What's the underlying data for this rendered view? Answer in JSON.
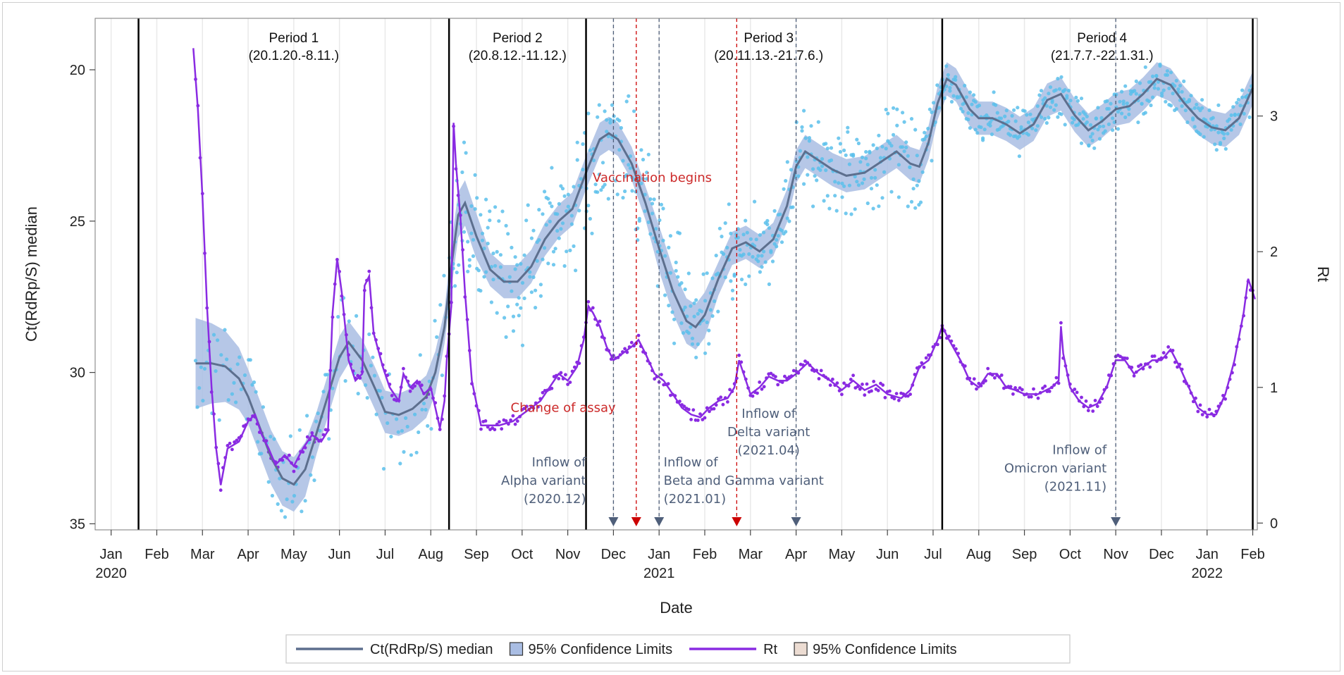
{
  "chart_data": {
    "type": "line",
    "xlabel": "Date",
    "ylabel_left": "Ct(RdRp/S) median",
    "ylabel_right": "Rt",
    "ylim_left": [
      35,
      18
    ],
    "ylim_right": [
      0,
      3.6
    ],
    "yticks_left": [
      20,
      25,
      30,
      35
    ],
    "yticks_right": [
      0,
      1,
      2,
      3
    ],
    "x_ticks": [
      {
        "m": 0,
        "label": "Jan",
        "year": "2020"
      },
      {
        "m": 1,
        "label": "Feb",
        "year": ""
      },
      {
        "m": 2,
        "label": "Mar",
        "year": ""
      },
      {
        "m": 3,
        "label": "Apr",
        "year": ""
      },
      {
        "m": 4,
        "label": "May",
        "year": ""
      },
      {
        "m": 5,
        "label": "Jun",
        "year": ""
      },
      {
        "m": 6,
        "label": "Jul",
        "year": ""
      },
      {
        "m": 7,
        "label": "Aug",
        "year": ""
      },
      {
        "m": 8,
        "label": "Sep",
        "year": ""
      },
      {
        "m": 9,
        "label": "Oct",
        "year": ""
      },
      {
        "m": 10,
        "label": "Nov",
        "year": ""
      },
      {
        "m": 11,
        "label": "Dec",
        "year": ""
      },
      {
        "m": 12,
        "label": "Jan",
        "year": "2021"
      },
      {
        "m": 13,
        "label": "Feb",
        "year": ""
      },
      {
        "m": 14,
        "label": "Mar",
        "year": ""
      },
      {
        "m": 15,
        "label": "Apr",
        "year": ""
      },
      {
        "m": 16,
        "label": "May",
        "year": ""
      },
      {
        "m": 17,
        "label": "Jun",
        "year": ""
      },
      {
        "m": 18,
        "label": "Jul",
        "year": ""
      },
      {
        "m": 19,
        "label": "Aug",
        "year": ""
      },
      {
        "m": 20,
        "label": "Sep",
        "year": ""
      },
      {
        "m": 21,
        "label": "Oct",
        "year": ""
      },
      {
        "m": 22,
        "label": "Nov",
        "year": ""
      },
      {
        "m": 23,
        "label": "Dec",
        "year": ""
      },
      {
        "m": 24,
        "label": "Jan",
        "year": "2022"
      },
      {
        "m": 25,
        "label": "Feb",
        "year": ""
      }
    ],
    "period_boundaries": [
      0.6,
      7.4,
      10.4,
      18.2,
      25.0
    ],
    "periods": [
      {
        "name": "Period 1",
        "range": "(20.1.20.-8.11.)",
        "m": 4.0
      },
      {
        "name": "Period 2",
        "range": "(20.8.12.-11.12.)",
        "m": 8.9
      },
      {
        "name": "Period 3",
        "range": "(20.11.13.-21.7.6.)",
        "m": 14.4
      },
      {
        "name": "Period 4",
        "range": "(21.7.7.-22.1.31.)",
        "m": 21.7
      }
    ],
    "events": [
      {
        "m": 11.0,
        "color": "#4f5f7a",
        "kind": "blue"
      },
      {
        "m": 11.5,
        "color": "#cc0000",
        "kind": "red"
      },
      {
        "m": 12.0,
        "color": "#4f5f7a",
        "kind": "blue"
      },
      {
        "m": 13.7,
        "color": "#cc0000",
        "kind": "red"
      },
      {
        "m": 15.0,
        "color": "#4f5f7a",
        "kind": "blue"
      },
      {
        "m": 22.0,
        "color": "#4f5f7a",
        "kind": "blue"
      }
    ],
    "annotations": [
      {
        "lines": [
          "Vaccination begins"
        ],
        "m": 11.85,
        "ct": 23.7,
        "color": "red",
        "anchor": "middle"
      },
      {
        "lines": [
          "Change of assay"
        ],
        "m": 9.9,
        "ct": 31.3,
        "color": "red",
        "anchor": "middle"
      },
      {
        "lines": [
          "Inflow of",
          "Alpha variant",
          "(2020.12)"
        ],
        "m": 10.4,
        "ct": 33.1,
        "color": "blue",
        "anchor": "end"
      },
      {
        "lines": [
          "Inflow of",
          "Beta and Gamma variant",
          "(2021.01)"
        ],
        "m": 12.1,
        "ct": 33.1,
        "color": "blue",
        "anchor": "start"
      },
      {
        "lines": [
          "Inflow of",
          "Delta variant",
          "(2021.04)"
        ],
        "m": 14.4,
        "ct": 31.5,
        "color": "blue",
        "anchor": "middle"
      },
      {
        "lines": [
          "Inflow of",
          "Omicron variant",
          "(2021.11)"
        ],
        "m": 21.8,
        "ct": 32.7,
        "color": "blue",
        "anchor": "end"
      }
    ],
    "series": [
      {
        "name": "Ct(RdRp/S) median",
        "axis": "left",
        "color": "#5d6f8e",
        "band_color": "#a9bde3",
        "points": [
          [
            1.85,
            29.7
          ],
          [
            2.2,
            29.7
          ],
          [
            2.5,
            29.8
          ],
          [
            2.8,
            30.2
          ],
          [
            3.0,
            30.8
          ],
          [
            3.25,
            31.8
          ],
          [
            3.5,
            32.8
          ],
          [
            3.75,
            33.5
          ],
          [
            4.0,
            33.7
          ],
          [
            4.25,
            33.2
          ],
          [
            4.5,
            32.0
          ],
          [
            4.8,
            30.5
          ],
          [
            5.0,
            29.5
          ],
          [
            5.2,
            29.0
          ],
          [
            5.5,
            29.6
          ],
          [
            5.8,
            30.6
          ],
          [
            6.0,
            31.3
          ],
          [
            6.3,
            31.4
          ],
          [
            6.6,
            31.2
          ],
          [
            6.9,
            30.8
          ],
          [
            7.1,
            30.0
          ],
          [
            7.3,
            28.5
          ],
          [
            7.45,
            26.5
          ],
          [
            7.6,
            24.8
          ],
          [
            7.75,
            24.4
          ],
          [
            8.0,
            25.5
          ],
          [
            8.3,
            26.6
          ],
          [
            8.6,
            27.0
          ],
          [
            8.9,
            27.0
          ],
          [
            9.2,
            26.5
          ],
          [
            9.5,
            25.6
          ],
          [
            9.8,
            25.0
          ],
          [
            10.1,
            24.6
          ],
          [
            10.4,
            23.4
          ],
          [
            10.7,
            22.3
          ],
          [
            10.9,
            22.1
          ],
          [
            11.1,
            22.3
          ],
          [
            11.4,
            23.1
          ],
          [
            11.7,
            24.4
          ],
          [
            12.0,
            25.9
          ],
          [
            12.3,
            27.3
          ],
          [
            12.6,
            28.3
          ],
          [
            12.8,
            28.5
          ],
          [
            13.0,
            28.1
          ],
          [
            13.3,
            26.9
          ],
          [
            13.6,
            25.9
          ],
          [
            13.9,
            25.7
          ],
          [
            14.2,
            26.0
          ],
          [
            14.5,
            25.6
          ],
          [
            14.8,
            24.5
          ],
          [
            15.0,
            23.2
          ],
          [
            15.2,
            22.7
          ],
          [
            15.5,
            23.0
          ],
          [
            15.8,
            23.3
          ],
          [
            16.1,
            23.5
          ],
          [
            16.5,
            23.4
          ],
          [
            16.8,
            23.1
          ],
          [
            17.2,
            22.7
          ],
          [
            17.5,
            23.1
          ],
          [
            17.7,
            23.2
          ],
          [
            17.9,
            22.4
          ],
          [
            18.1,
            21.1
          ],
          [
            18.3,
            20.3
          ],
          [
            18.5,
            20.5
          ],
          [
            18.8,
            21.3
          ],
          [
            19.0,
            21.6
          ],
          [
            19.3,
            21.6
          ],
          [
            19.6,
            21.8
          ],
          [
            19.9,
            22.1
          ],
          [
            20.2,
            21.8
          ],
          [
            20.5,
            21.0
          ],
          [
            20.8,
            20.8
          ],
          [
            21.1,
            21.5
          ],
          [
            21.4,
            22.0
          ],
          [
            21.7,
            21.7
          ],
          [
            22.0,
            21.3
          ],
          [
            22.3,
            21.2
          ],
          [
            22.6,
            20.8
          ],
          [
            22.9,
            20.3
          ],
          [
            23.2,
            20.5
          ],
          [
            23.5,
            21.1
          ],
          [
            23.8,
            21.6
          ],
          [
            24.1,
            21.9
          ],
          [
            24.4,
            22.0
          ],
          [
            24.7,
            21.6
          ],
          [
            25.0,
            20.6
          ]
        ]
      },
      {
        "name": "Rt",
        "axis": "right",
        "color": "#8a2be2",
        "points": [
          [
            1.8,
            3.5
          ],
          [
            1.9,
            3.05
          ],
          [
            2.0,
            2.4
          ],
          [
            2.1,
            1.6
          ],
          [
            2.2,
            1.0
          ],
          [
            2.3,
            0.55
          ],
          [
            2.4,
            0.28
          ],
          [
            2.55,
            0.55
          ],
          [
            2.8,
            0.6
          ],
          [
            3.0,
            0.75
          ],
          [
            3.15,
            0.8
          ],
          [
            3.3,
            0.65
          ],
          [
            3.45,
            0.55
          ],
          [
            3.6,
            0.43
          ],
          [
            3.8,
            0.5
          ],
          [
            4.0,
            0.42
          ],
          [
            4.2,
            0.55
          ],
          [
            4.4,
            0.65
          ],
          [
            4.6,
            0.6
          ],
          [
            4.75,
            0.68
          ],
          [
            4.85,
            1.55
          ],
          [
            4.95,
            1.95
          ],
          [
            5.05,
            1.7
          ],
          [
            5.2,
            1.2
          ],
          [
            5.35,
            1.05
          ],
          [
            5.5,
            1.1
          ],
          [
            5.55,
            1.75
          ],
          [
            5.65,
            1.82
          ],
          [
            5.75,
            1.4
          ],
          [
            5.95,
            1.15
          ],
          [
            6.1,
            1.0
          ],
          [
            6.3,
            0.9
          ],
          [
            6.4,
            1.1
          ],
          [
            6.55,
            1.0
          ],
          [
            6.7,
            1.05
          ],
          [
            6.85,
            0.95
          ],
          [
            7.0,
            1.0
          ],
          [
            7.1,
            0.85
          ],
          [
            7.2,
            0.7
          ],
          [
            7.3,
            0.9
          ],
          [
            7.35,
            1.2
          ],
          [
            7.45,
            1.6
          ],
          [
            7.5,
            2.95
          ],
          [
            7.55,
            2.65
          ],
          [
            7.65,
            2.25
          ],
          [
            7.75,
            1.7
          ],
          [
            7.9,
            1.05
          ],
          [
            8.1,
            0.72
          ],
          [
            8.3,
            0.72
          ],
          [
            8.5,
            0.72
          ],
          [
            8.8,
            0.75
          ],
          [
            9.0,
            0.8
          ],
          [
            9.2,
            0.85
          ],
          [
            9.4,
            0.9
          ],
          [
            9.6,
            1.0
          ],
          [
            9.8,
            1.1
          ],
          [
            10.0,
            1.05
          ],
          [
            10.2,
            1.15
          ],
          [
            10.35,
            1.35
          ],
          [
            10.45,
            1.6
          ],
          [
            10.55,
            1.55
          ],
          [
            10.7,
            1.45
          ],
          [
            10.85,
            1.3
          ],
          [
            11.0,
            1.2
          ],
          [
            11.2,
            1.25
          ],
          [
            11.4,
            1.3
          ],
          [
            11.55,
            1.35
          ],
          [
            11.7,
            1.25
          ],
          [
            11.9,
            1.1
          ],
          [
            12.1,
            1.05
          ],
          [
            12.3,
            0.95
          ],
          [
            12.5,
            0.85
          ],
          [
            12.7,
            0.8
          ],
          [
            12.9,
            0.78
          ],
          [
            13.1,
            0.85
          ],
          [
            13.3,
            0.9
          ],
          [
            13.5,
            0.92
          ],
          [
            13.65,
            1.0
          ],
          [
            13.75,
            1.2
          ],
          [
            13.85,
            1.1
          ],
          [
            14.0,
            0.95
          ],
          [
            14.2,
            1.0
          ],
          [
            14.4,
            1.08
          ],
          [
            14.6,
            1.05
          ],
          [
            14.8,
            1.05
          ],
          [
            15.0,
            1.1
          ],
          [
            15.25,
            1.18
          ],
          [
            15.5,
            1.1
          ],
          [
            15.75,
            1.05
          ],
          [
            16.0,
            0.98
          ],
          [
            16.25,
            1.05
          ],
          [
            16.5,
            0.98
          ],
          [
            16.75,
            1.02
          ],
          [
            17.0,
            0.95
          ],
          [
            17.3,
            0.92
          ],
          [
            17.5,
            0.98
          ],
          [
            17.7,
            1.15
          ],
          [
            17.9,
            1.2
          ],
          [
            18.1,
            1.35
          ],
          [
            18.2,
            1.45
          ],
          [
            18.35,
            1.35
          ],
          [
            18.6,
            1.2
          ],
          [
            18.8,
            1.05
          ],
          [
            19.0,
            1.0
          ],
          [
            19.2,
            1.1
          ],
          [
            19.4,
            1.1
          ],
          [
            19.6,
            1.0
          ],
          [
            19.8,
            0.98
          ],
          [
            20.0,
            0.95
          ],
          [
            20.3,
            0.95
          ],
          [
            20.6,
            1.0
          ],
          [
            20.75,
            1.05
          ],
          [
            20.8,
            1.45
          ],
          [
            20.85,
            1.25
          ],
          [
            21.0,
            1.0
          ],
          [
            21.2,
            0.9
          ],
          [
            21.4,
            0.85
          ],
          [
            21.6,
            0.88
          ],
          [
            21.8,
            1.0
          ],
          [
            22.0,
            1.2
          ],
          [
            22.2,
            1.2
          ],
          [
            22.4,
            1.1
          ],
          [
            22.6,
            1.15
          ],
          [
            22.8,
            1.2
          ],
          [
            23.0,
            1.2
          ],
          [
            23.2,
            1.28
          ],
          [
            23.4,
            1.15
          ],
          [
            23.6,
            1.0
          ],
          [
            23.8,
            0.85
          ],
          [
            24.0,
            0.8
          ],
          [
            24.2,
            0.8
          ],
          [
            24.4,
            0.95
          ],
          [
            24.6,
            1.2
          ],
          [
            24.8,
            1.55
          ],
          [
            24.9,
            1.8
          ],
          [
            25.05,
            1.65
          ]
        ]
      }
    ],
    "legend": [
      {
        "label": "Ct(RdRp/S) median",
        "type": "line",
        "color": "#5d6f8e"
      },
      {
        "label": "95% Confidence Limits",
        "type": "box",
        "color": "#a9bde3"
      },
      {
        "label": "Rt",
        "type": "line",
        "color": "#8a2be2"
      },
      {
        "label": "95% Confidence Limits",
        "type": "box",
        "color": "#ecdcd2"
      }
    ],
    "scatter_color": "#5bc0eb",
    "rt_marker_color": "#8a2be2"
  }
}
